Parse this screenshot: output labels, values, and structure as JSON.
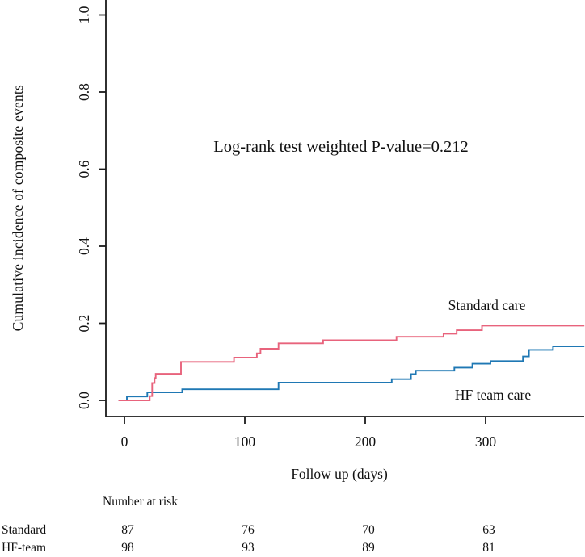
{
  "chart_data": {
    "type": "line",
    "subtype": "step-cumulative-incidence",
    "title": "",
    "xlabel": "Follow up (days)",
    "ylabel": "Cumulative incidence of composite events",
    "annotation": "Log-rank test weighted P-value=0.212",
    "xlim": [
      -5,
      382
    ],
    "ylim": [
      0,
      1.05
    ],
    "x_ticks": [
      0,
      100,
      200,
      300
    ],
    "y_ticks": [
      "0.0",
      "0.2",
      "0.4",
      "0.6",
      "0.8",
      "1.0"
    ],
    "grid": false,
    "legend_position": "labels-on-curves",
    "axis_color": "#1a1a1a",
    "series": [
      {
        "name": "HF team care",
        "color": "#1f78b4",
        "steps": [
          [
            -5,
            0
          ],
          [
            2,
            0.01
          ],
          [
            19,
            0.021
          ],
          [
            48,
            0.029
          ],
          [
            128,
            0.046
          ],
          [
            222,
            0.055
          ],
          [
            238,
            0.068
          ],
          [
            242,
            0.077
          ],
          [
            274,
            0.085
          ],
          [
            289,
            0.095
          ],
          [
            304,
            0.102
          ],
          [
            331,
            0.114
          ],
          [
            336,
            0.131
          ],
          [
            356,
            0.14
          ],
          [
            382,
            0.14
          ]
        ]
      },
      {
        "name": "Standard care",
        "color": "#e8637c",
        "steps": [
          [
            -5,
            0
          ],
          [
            21,
            0.011
          ],
          [
            23,
            0.045
          ],
          [
            25,
            0.058
          ],
          [
            26,
            0.069
          ],
          [
            47,
            0.1
          ],
          [
            91,
            0.111
          ],
          [
            110,
            0.122
          ],
          [
            113,
            0.134
          ],
          [
            128,
            0.148
          ],
          [
            165,
            0.156
          ],
          [
            226,
            0.165
          ],
          [
            265,
            0.173
          ],
          [
            276,
            0.182
          ],
          [
            297,
            0.194
          ],
          [
            382,
            0.194
          ]
        ]
      }
    ],
    "risk_table": {
      "title": "Number at risk",
      "time_points": [
        0,
        100,
        200,
        300
      ],
      "rows": [
        {
          "label": "Standard",
          "values": [
            "87",
            "76",
            "70",
            "63"
          ]
        },
        {
          "label": "HF-team",
          "values": [
            "98",
            "93",
            "89",
            "81"
          ]
        }
      ]
    }
  }
}
